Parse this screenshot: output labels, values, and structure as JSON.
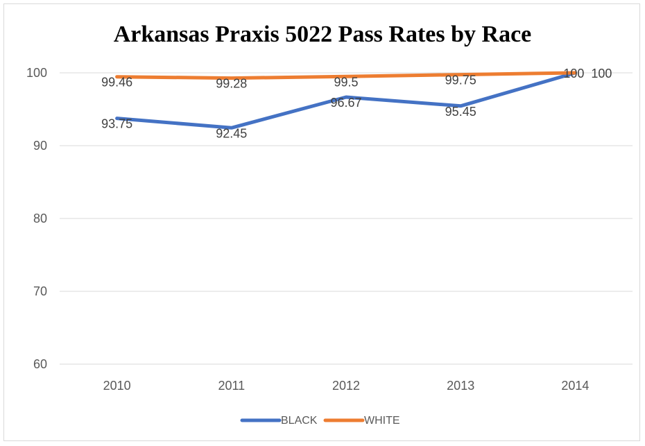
{
  "chart_data": {
    "type": "line",
    "title": "Arkansas Praxis 5022 Pass Rates by Race",
    "categories": [
      "2010",
      "2011",
      "2012",
      "2013",
      "2014"
    ],
    "ylim": [
      60,
      100
    ],
    "yticks": [
      60,
      70,
      80,
      90,
      100
    ],
    "grid": true,
    "legend_position": "bottom",
    "series": [
      {
        "name": "BLACK",
        "color": "#4472c4",
        "values": [
          93.75,
          92.45,
          96.67,
          95.45,
          100
        ],
        "labels": [
          "93.75",
          "92.45",
          "96.67",
          "95.45",
          "100"
        ]
      },
      {
        "name": "WHITE",
        "color": "#ed7d31",
        "values": [
          99.46,
          99.28,
          99.5,
          99.75,
          100
        ],
        "labels": [
          "99.46",
          "99.28",
          "99.5",
          "99.75",
          "100"
        ]
      }
    ]
  }
}
